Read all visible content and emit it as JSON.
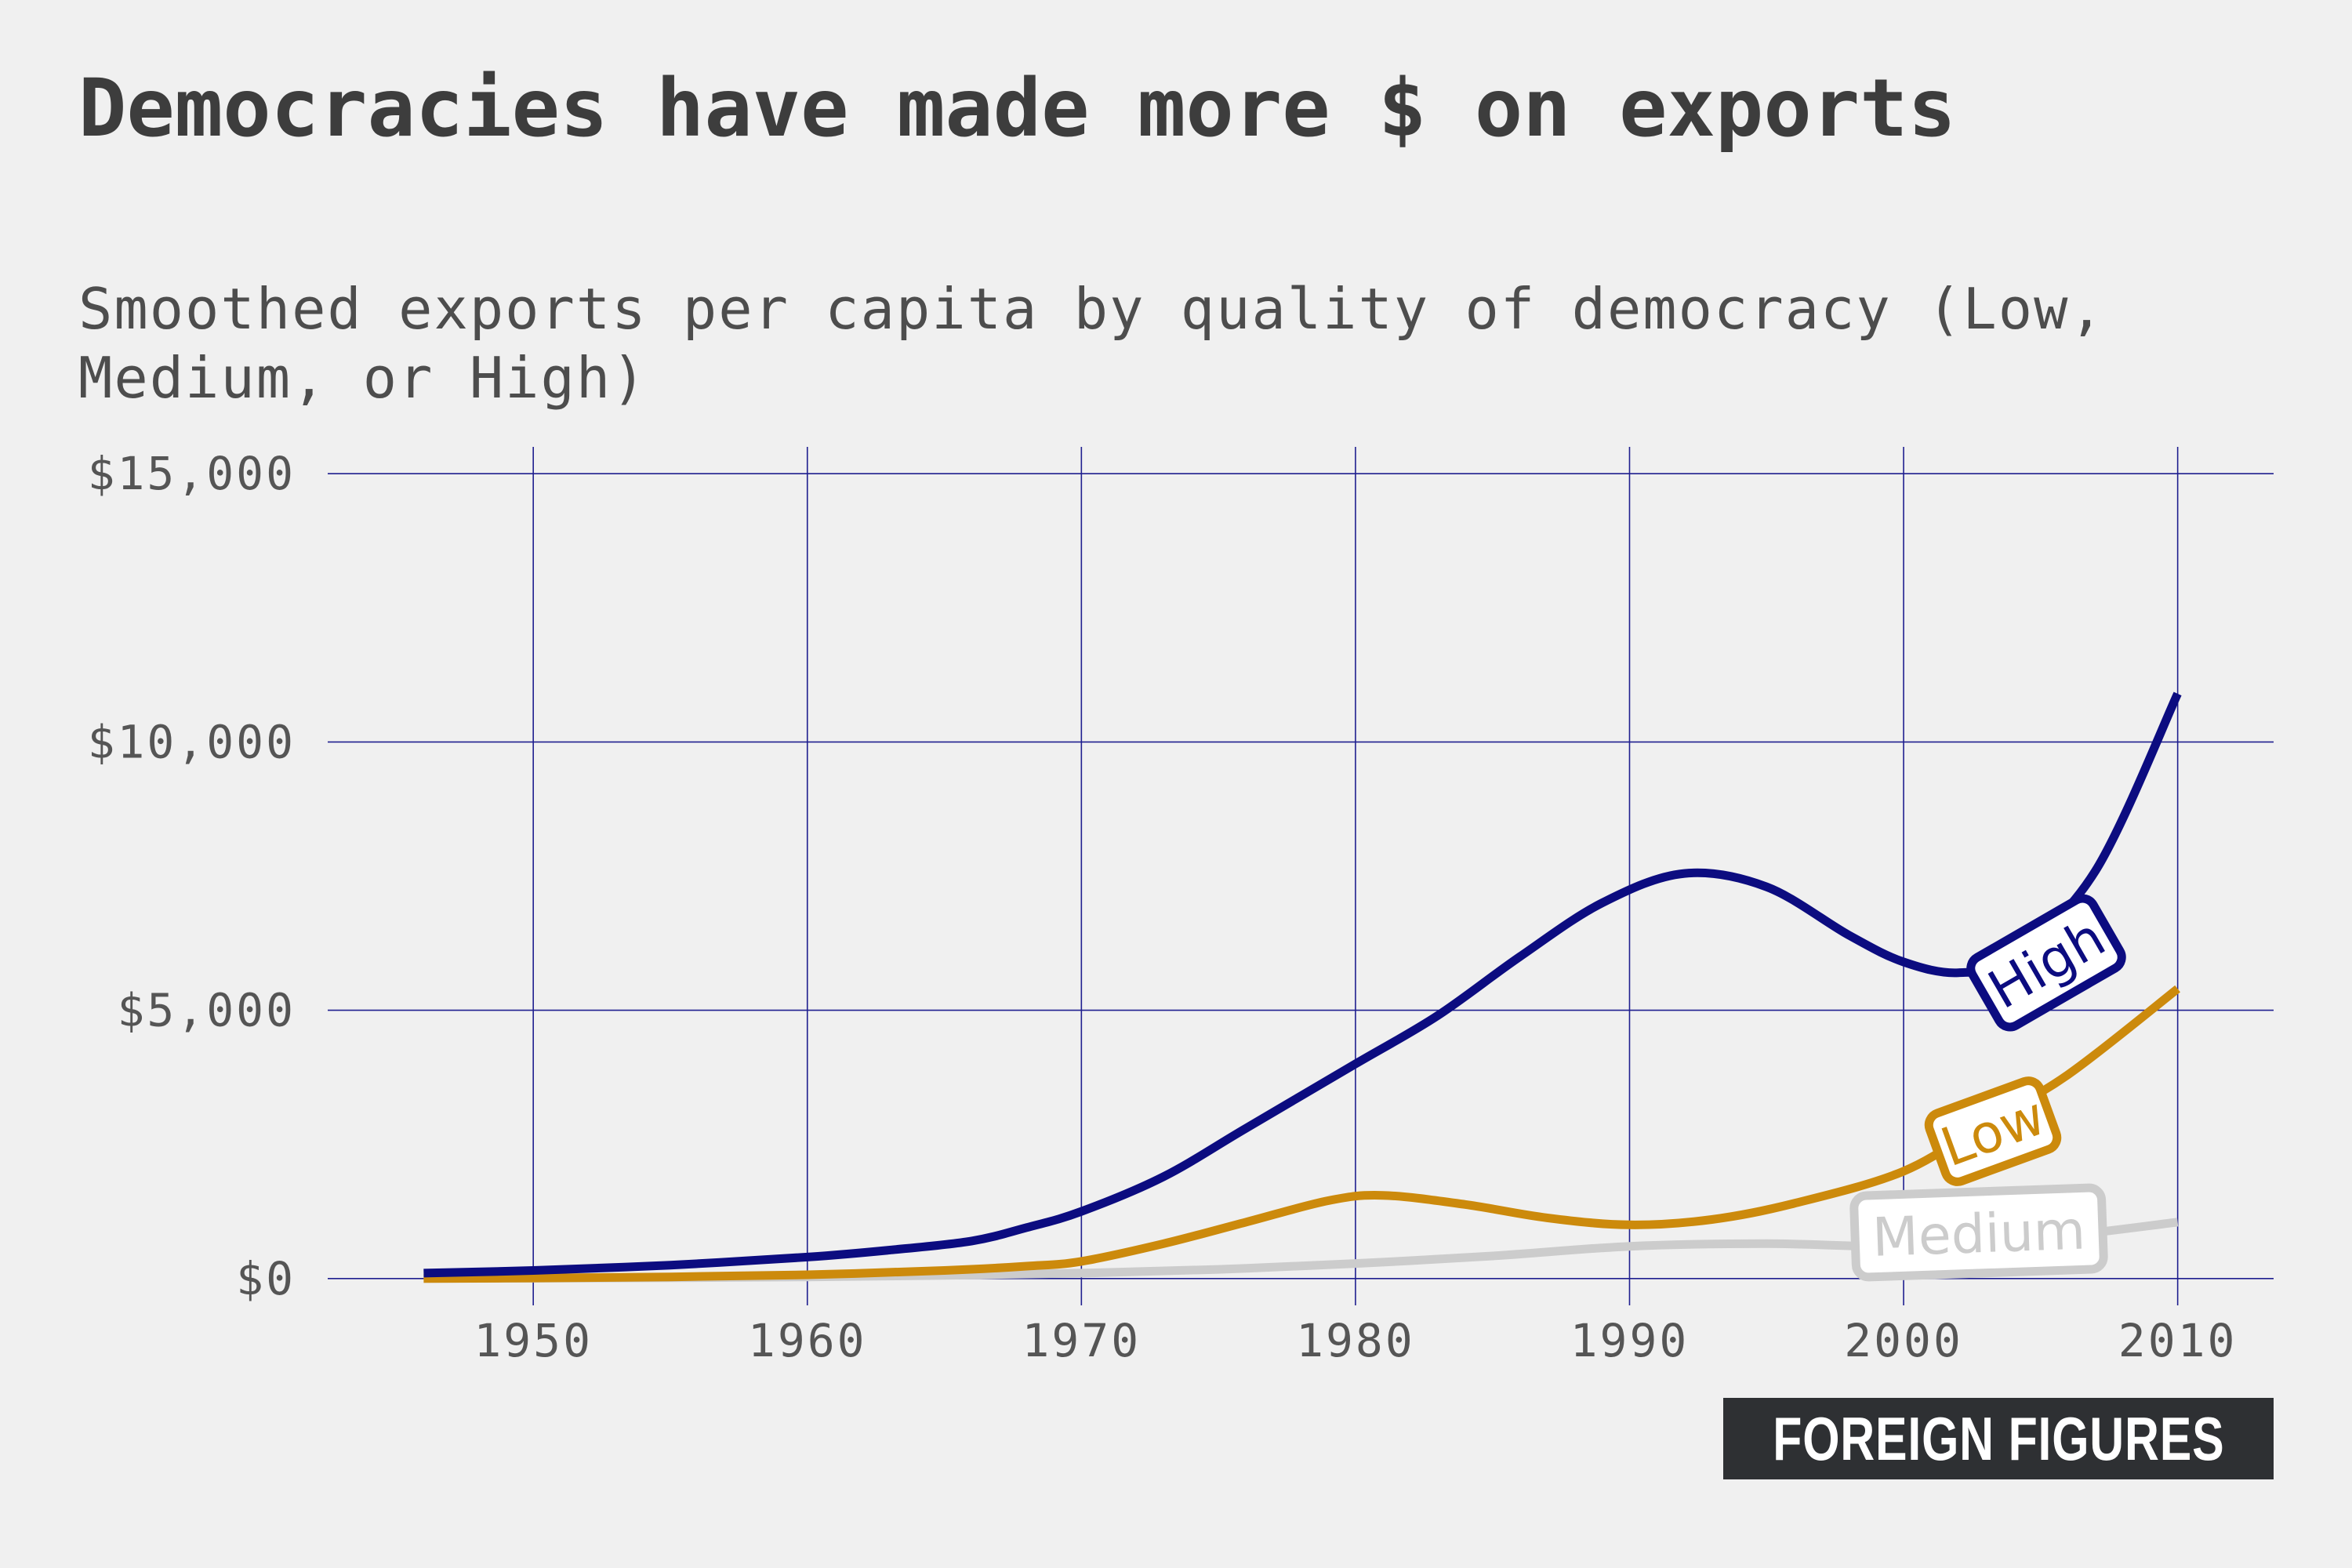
{
  "title": "Democracies have made more $ on exports",
  "subtitle": "Smoothed exports per capita by quality of democracy (Low, Medium, or High)",
  "brand": "FOREIGN FIGURES",
  "chart_data": {
    "type": "line",
    "title": "Democracies have made more $ on exports",
    "subtitle": "Smoothed exports per capita by quality of democracy (Low, Medium, or High)",
    "xlabel": "",
    "ylabel": "",
    "xlim": [
      1942.5,
      2013.5
    ],
    "ylim": [
      -500,
      15500
    ],
    "x_ticks": [
      1950,
      1960,
      1970,
      1980,
      1990,
      2000,
      2010
    ],
    "x_tick_labels": [
      "1950",
      "1960",
      "1970",
      "1980",
      "1990",
      "2000",
      "2010"
    ],
    "y_ticks": [
      0,
      5000,
      10000,
      15000
    ],
    "y_tick_labels": [
      "$0",
      "$5,000",
      "$10,000",
      "$15,000"
    ],
    "grid": true,
    "legend": "direct labels on lines",
    "series": [
      {
        "name": "Medium",
        "color": "#cccccc",
        "x": [
          1946,
          1950,
          1955,
          1960,
          1965,
          1970,
          1975,
          1980,
          1985,
          1990,
          1995,
          2000,
          2005,
          2010
        ],
        "y": [
          0,
          5,
          15,
          30,
          60,
          100,
          170,
          280,
          420,
          600,
          650,
          600,
          750,
          1050
        ]
      },
      {
        "name": "Low",
        "color": "#cc8a0c",
        "x": [
          1946,
          1950,
          1955,
          1960,
          1965,
          1968,
          1970,
          1973,
          1976,
          1979,
          1981,
          1984,
          1987,
          1990,
          1993,
          1996,
          2000,
          2003,
          2006,
          2010
        ],
        "y": [
          0,
          10,
          30,
          70,
          150,
          230,
          320,
          650,
          1050,
          1450,
          1550,
          1380,
          1130,
          1000,
          1100,
          1400,
          2000,
          2900,
          3800,
          5400
        ]
      },
      {
        "name": "High",
        "color": "#0c0c80",
        "x": [
          1946,
          1950,
          1955,
          1960,
          1963,
          1966,
          1968,
          1970,
          1973,
          1976,
          1980,
          1983,
          1986,
          1989,
          1992,
          1995,
          1998,
          2000,
          2002,
          2004,
          2007,
          2010
        ],
        "y": [
          100,
          150,
          250,
          400,
          530,
          700,
          950,
          1250,
          1900,
          2800,
          4000,
          4900,
          6000,
          7000,
          7550,
          7300,
          6400,
          5900,
          5700,
          6000,
          7600,
          10900
        ]
      }
    ],
    "annotations": [
      {
        "series": "High",
        "text": "High"
      },
      {
        "series": "Low",
        "text": "Low"
      },
      {
        "series": "Medium",
        "text": "Medium"
      }
    ]
  }
}
